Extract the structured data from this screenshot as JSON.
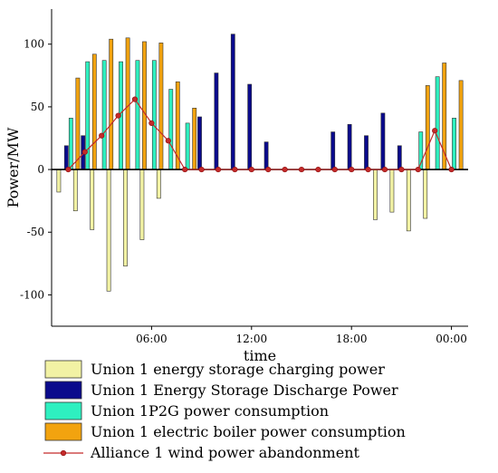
{
  "chart_data": {
    "type": "bar",
    "xlabel": "time",
    "ylabel": "Power/MW",
    "ylim": [
      -125,
      128
    ],
    "yticks": [
      -100,
      -50,
      0,
      50,
      100
    ],
    "xticks": [
      {
        "hour": 6,
        "label": "06:00"
      },
      {
        "hour": 12,
        "label": "12:00"
      },
      {
        "hour": 18,
        "label": "18:00"
      },
      {
        "hour": 24,
        "label": "00:00"
      }
    ],
    "xlim": [
      0,
      25
    ],
    "x": [
      1,
      2,
      3,
      4,
      5,
      6,
      7,
      8,
      9,
      10,
      11,
      12,
      13,
      14,
      15,
      16,
      17,
      18,
      19,
      20,
      21,
      22,
      23,
      24
    ],
    "series": [
      {
        "name": "Union 1 energy storage charging power",
        "color": "#f2f2a4",
        "kind": "bar",
        "values": [
          -18,
          -33,
          -48,
          -97,
          -77,
          -56,
          -23,
          0,
          0,
          0,
          0,
          0,
          0,
          0,
          0,
          0,
          0,
          0,
          0,
          -40,
          -34,
          -49,
          -39,
          0
        ]
      },
      {
        "name": "Union 1 Energy Storage Discharge Power",
        "color": "#0a0a8c",
        "kind": "bar",
        "values": [
          19,
          27,
          0,
          0,
          0,
          0,
          0,
          0,
          42,
          77,
          108,
          68,
          22,
          0,
          0,
          0,
          30,
          36,
          27,
          45,
          19,
          0,
          0,
          0
        ]
      },
      {
        "name": "Union 1P2G power consumption",
        "color": "#2ef0c0",
        "kind": "bar",
        "values": [
          41,
          86,
          87,
          86,
          87,
          87,
          64,
          37,
          0,
          0,
          0,
          0,
          0,
          0,
          0,
          0,
          0,
          0,
          0,
          0,
          0,
          30,
          74,
          41
        ]
      },
      {
        "name": "Union 1 electric boiler power consumption",
        "color": "#f2a30f",
        "kind": "bar",
        "values": [
          73,
          92,
          104,
          105,
          102,
          101,
          70,
          49,
          0,
          0,
          0,
          0,
          0,
          0,
          0,
          0,
          0,
          0,
          0,
          0,
          0,
          67,
          85,
          71
        ]
      },
      {
        "name": "Alliance 1 wind power abandonment",
        "color": "#c42a2a",
        "kind": "line",
        "values": [
          0,
          14,
          27,
          43,
          56,
          37,
          23,
          0,
          0,
          0,
          0,
          0,
          0,
          0,
          0,
          0,
          0,
          0,
          0,
          0,
          0,
          0,
          31,
          0
        ]
      }
    ]
  }
}
